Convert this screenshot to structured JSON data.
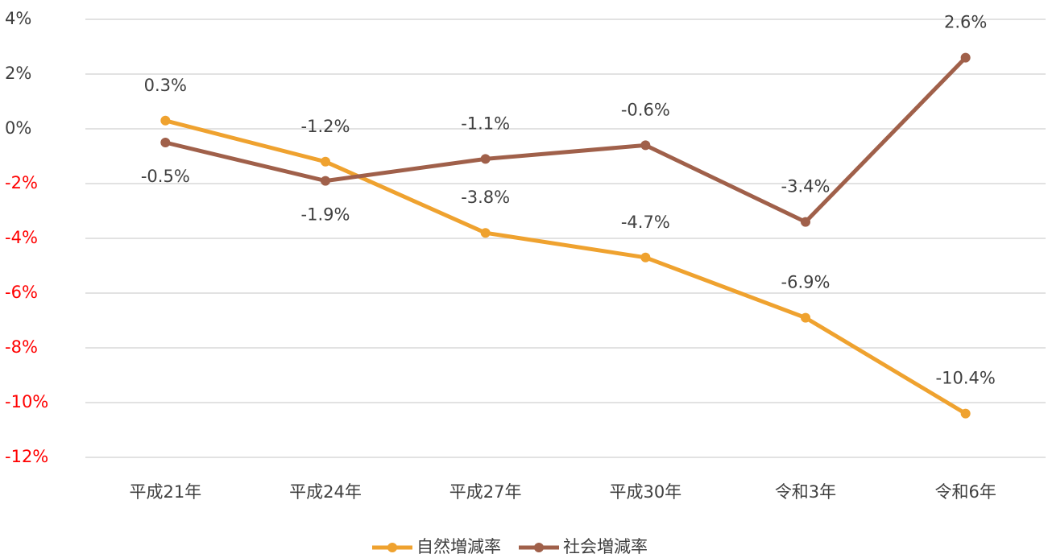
{
  "chart_data": {
    "type": "line",
    "categories": [
      "平成21年",
      "平成24年",
      "平成27年",
      "平成30年",
      "令和3年",
      "令和6年"
    ],
    "series": [
      {
        "name": "自然増減率",
        "color": "#efa22f",
        "values": [
          0.3,
          -1.2,
          -3.8,
          -4.7,
          -6.9,
          -10.4
        ],
        "value_labels": [
          "0.3%",
          "-1.2%",
          "-3.8%",
          "-4.7%",
          "-6.9%",
          "-10.4%"
        ]
      },
      {
        "name": "社会増減率",
        "color": "#a0604a",
        "values": [
          -0.5,
          -1.9,
          -1.1,
          -0.6,
          -3.4,
          2.6
        ],
        "value_labels": [
          "-0.5%",
          "-1.9%",
          "-1.1%",
          "-0.6%",
          "-3.4%",
          "2.6%"
        ]
      }
    ],
    "ylim": [
      -12,
      4
    ],
    "yticks": [
      {
        "value": -12,
        "label": "-12%"
      },
      {
        "value": -10,
        "label": "-10%"
      },
      {
        "value": -8,
        "label": "-8%"
      },
      {
        "value": -6,
        "label": "-6%"
      },
      {
        "value": -4,
        "label": "-4%"
      },
      {
        "value": -2,
        "label": "-2%"
      },
      {
        "value": 0,
        "label": "0%"
      },
      {
        "value": 2,
        "label": "2%"
      },
      {
        "value": 4,
        "label": "4%"
      }
    ],
    "negative_tick_color": "#ff0000",
    "grid": true,
    "legend": "bottom"
  }
}
